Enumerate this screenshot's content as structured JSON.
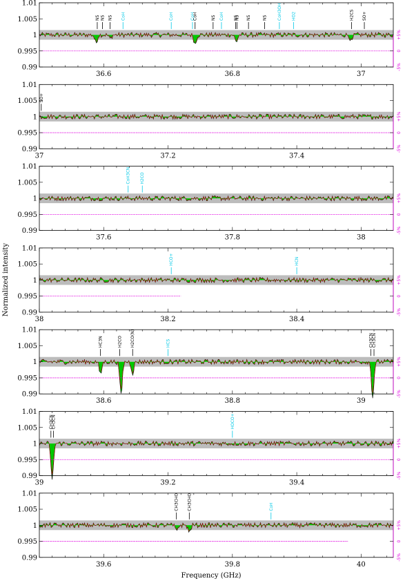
{
  "chart_data": {
    "type": "line",
    "ylabel": "Normalized intensity",
    "xlabel": "Frequency (GHz)",
    "ylim": [
      0.99,
      1.01
    ],
    "yticks": [
      "1.01",
      "1.005",
      "1",
      "0.995",
      "0.99"
    ],
    "residual_ticks": [
      "+5%",
      "0",
      "-5%"
    ],
    "colors": {
      "observed": "#000000",
      "model": "#d00000",
      "fill": "#00c800",
      "noise_band": "#bcbcbc",
      "residual": "#e000e0",
      "known_label": "#000000",
      "unidentified_label": "#00c8e6"
    },
    "panels": [
      {
        "xlim": [
          36.5,
          37.05
        ],
        "xticks": [
          "36.6",
          "36.8",
          "37"
        ],
        "xtick_values": [
          36.6,
          36.8,
          37.0
        ],
        "lines": [
          {
            "f": 36.59,
            "label": "NS",
            "known": true
          },
          {
            "f": 36.598,
            "label": "NS",
            "known": true
          },
          {
            "f": 36.61,
            "label": "NS",
            "known": true
          },
          {
            "f": 36.63,
            "label": "CoH",
            "known": false
          },
          {
            "f": 36.705,
            "label": "CoH",
            "known": false
          },
          {
            "f": 36.738,
            "label": "CoH",
            "known": false
          },
          {
            "f": 36.742,
            "label": "CoH",
            "known": true
          },
          {
            "f": 36.77,
            "label": "NS",
            "known": true
          },
          {
            "f": 36.783,
            "label": "CoH",
            "known": false
          },
          {
            "f": 36.805,
            "label": "NS",
            "known": true
          },
          {
            "f": 36.807,
            "label": "NS",
            "known": true
          },
          {
            "f": 36.825,
            "label": "NS",
            "known": true
          },
          {
            "f": 36.85,
            "label": "NS",
            "known": true
          },
          {
            "f": 36.873,
            "label": "CoH3OH",
            "known": false
          },
          {
            "f": 36.895,
            "label": "HO2",
            "known": false
          },
          {
            "f": 36.985,
            "label": "H2CS",
            "known": true
          },
          {
            "f": 37.005,
            "label": "SO+",
            "known": true
          }
        ],
        "absorptions": [
          {
            "f": 36.588,
            "depth": 0.0025
          },
          {
            "f": 36.61,
            "depth": 0.0012
          },
          {
            "f": 36.742,
            "depth": 0.0028
          },
          {
            "f": 36.806,
            "depth": 0.0022
          },
          {
            "f": 36.985,
            "depth": 0.0022
          }
        ],
        "residual_end": 37.05
      },
      {
        "xlim": [
          37.0,
          37.55
        ],
        "xticks": [
          "37",
          "37.2",
          "37.4"
        ],
        "xtick_values": [
          37.0,
          37.2,
          37.4
        ],
        "lines": [
          {
            "f": 37.003,
            "label": "SO+",
            "known": true
          }
        ],
        "absorptions": [],
        "residual_end": 37.55
      },
      {
        "xlim": [
          37.5,
          38.05
        ],
        "xticks": [
          "37.6",
          "37.8",
          "38"
        ],
        "xtick_values": [
          37.6,
          37.8,
          38.0
        ],
        "lines": [
          {
            "f": 37.638,
            "label": "CoH3CN",
            "known": false
          },
          {
            "f": 37.66,
            "label": "H2CO",
            "known": false
          }
        ],
        "absorptions": [],
        "residual_end": 38.05
      },
      {
        "xlim": [
          38.0,
          38.55
        ],
        "xticks": [
          "38",
          "38.2",
          "38.4"
        ],
        "xtick_values": [
          38.0,
          38.2,
          38.4
        ],
        "lines": [
          {
            "f": 38.205,
            "label": "HCO+",
            "known": false
          },
          {
            "f": 38.4,
            "label": "HCN",
            "known": false
          }
        ],
        "absorptions": [],
        "residual_end": 38.22
      },
      {
        "xlim": [
          38.5,
          39.05
        ],
        "xticks": [
          "38.6",
          "38.8",
          "39"
        ],
        "xtick_values": [
          38.6,
          38.8,
          39.0
        ],
        "lines": [
          {
            "f": 38.595,
            "label": "HC3N",
            "known": true
          },
          {
            "f": 38.625,
            "label": "H2CO",
            "known": true
          },
          {
            "f": 38.645,
            "label": "H2CO(N)",
            "known": true
          },
          {
            "f": 38.7,
            "label": "HCS",
            "known": false
          },
          {
            "f": 39.015,
            "label": "CH3CN",
            "known": true
          },
          {
            "f": 39.02,
            "label": "CH3CN",
            "known": true
          }
        ],
        "absorptions": [
          {
            "f": 38.595,
            "depth": 0.004
          },
          {
            "f": 38.627,
            "depth": 0.0105
          },
          {
            "f": 38.645,
            "depth": 0.0035
          },
          {
            "f": 39.018,
            "depth": 0.011
          }
        ],
        "residual_end": 39.05
      },
      {
        "xlim": [
          39.0,
          39.55
        ],
        "xticks": [
          "39",
          "39.2",
          "39.4"
        ],
        "xtick_values": [
          39.0,
          39.2,
          39.4
        ],
        "lines": [
          {
            "f": 39.018,
            "label": "CH3CN",
            "known": true
          },
          {
            "f": 39.022,
            "label": "CH3CN",
            "known": true
          },
          {
            "f": 39.3,
            "label": "HOCO+",
            "known": false
          }
        ],
        "absorptions": [
          {
            "f": 39.02,
            "depth": 0.0115
          }
        ],
        "residual_end": 39.55
      },
      {
        "xlim": [
          39.5,
          40.05
        ],
        "xticks": [
          "39.6",
          "39.8",
          "40"
        ],
        "xtick_values": [
          39.6,
          39.8,
          40.0
        ],
        "lines": [
          {
            "f": 39.713,
            "label": "CH3CHO",
            "known": true
          },
          {
            "f": 39.733,
            "label": "CH3CHO",
            "known": true
          },
          {
            "f": 39.86,
            "label": "CoH",
            "known": false
          }
        ],
        "absorptions": [
          {
            "f": 39.713,
            "depth": 0.0018
          },
          {
            "f": 39.733,
            "depth": 0.0022
          }
        ],
        "residual_end": 39.98
      }
    ]
  }
}
